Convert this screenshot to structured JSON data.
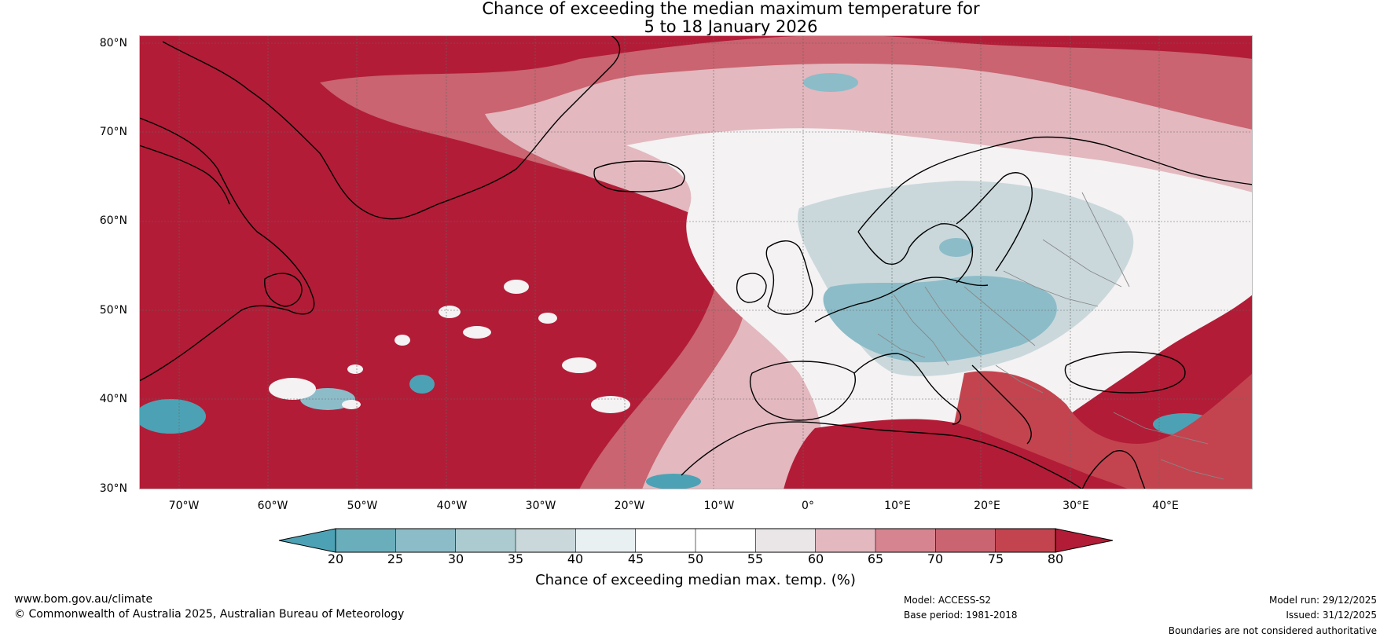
{
  "title": {
    "line1": "Chance of exceeding the median maximum temperature for",
    "line2": "5 to 18 January 2026"
  },
  "map": {
    "latitude_labels": [
      "80°N",
      "70°N",
      "60°N",
      "50°N",
      "40°N",
      "30°N"
    ],
    "longitude_labels": [
      "70°W",
      "60°W",
      "50°W",
      "40°W",
      "30°W",
      "20°W",
      "10°W",
      "0°",
      "10°E",
      "20°E",
      "30°E",
      "40°E"
    ]
  },
  "colorbar": {
    "ticks": [
      "20",
      "25",
      "30",
      "35",
      "40",
      "45",
      "50",
      "55",
      "60",
      "65",
      "70",
      "75",
      "80"
    ],
    "colors": [
      "#4ca2b4",
      "#6aaebc",
      "#8cbcc8",
      "#abcbd0",
      "#cad8dc",
      "#e8f0f2",
      "#ffffff",
      "#ffffff",
      "#eae6e8",
      "#e3b8bf",
      "#d6848f",
      "#c96470",
      "#c3444f",
      "#b21c37"
    ],
    "title": "Chance of exceeding median max. temp. (%)"
  },
  "footer": {
    "website": "www.bom.gov.au/climate",
    "copyright": "© Commonwealth of Australia 2025, Australian Bureau of Meteorology",
    "model": "Model: ACCESS-S2",
    "base_period": "Base period: 1981-2018",
    "model_run": "Model run: 29/12/2025",
    "issued": "Issued: 31/12/2025",
    "disclaimer": "Boundaries are not considered authoritative"
  }
}
